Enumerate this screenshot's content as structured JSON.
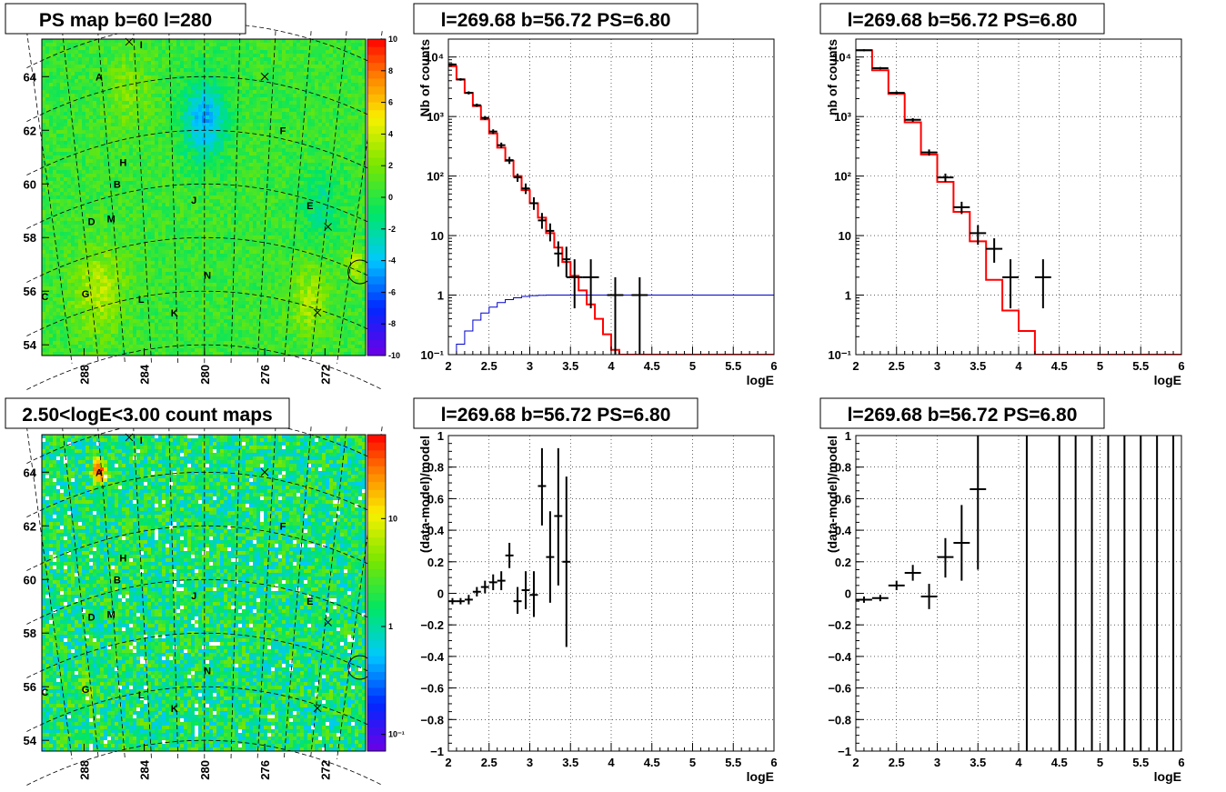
{
  "colors": {
    "model": "#ff0000",
    "efficiency": "#0000cc",
    "points": "#000000"
  },
  "maps": [
    {
      "title": "PS map b=60 l=280",
      "type": "heatmap",
      "colorscale": "linear",
      "zlim": [
        -10,
        10
      ],
      "palette_ticks": [
        "10",
        "8",
        "6",
        "4",
        "2",
        "0",
        "-2",
        "-4",
        "-6",
        "-8",
        "-10"
      ],
      "x_ticks": [
        "288",
        "284",
        "280",
        "276",
        "272"
      ],
      "y_ticks": [
        "64",
        "62",
        "60",
        "58",
        "56",
        "54"
      ],
      "sources": [
        {
          "label": "A",
          "l": 287.0,
          "b": 64.0
        },
        {
          "label": "I",
          "l": 284.2,
          "b": 65.2
        },
        {
          "label": "F",
          "l": 274.8,
          "b": 62.0
        },
        {
          "label": "H",
          "l": 285.4,
          "b": 60.8
        },
        {
          "label": "B",
          "l": 285.8,
          "b": 60.0
        },
        {
          "label": "J",
          "l": 280.7,
          "b": 59.4
        },
        {
          "label": "E",
          "l": 273.0,
          "b": 59.2
        },
        {
          "label": "D",
          "l": 287.5,
          "b": 58.6
        },
        {
          "label": "M",
          "l": 286.2,
          "b": 58.7
        },
        {
          "label": "N",
          "l": 279.8,
          "b": 56.6
        },
        {
          "label": "C",
          "l": 290.6,
          "b": 55.8
        },
        {
          "label": "G",
          "l": 287.9,
          "b": 55.9
        },
        {
          "label": "L",
          "l": 284.2,
          "b": 55.7
        },
        {
          "label": "K",
          "l": 282.0,
          "b": 55.2
        }
      ],
      "markers": [
        {
          "l": 276.0,
          "b": 64.0
        },
        {
          "l": 271.8,
          "b": 58.4
        },
        {
          "l": 272.5,
          "b": 55.2
        },
        {
          "l": 285.0,
          "b": 65.3
        }
      ],
      "circle": {
        "l": 269.68,
        "b": 56.72
      }
    },
    {
      "title": "2.50<logE<3.00 count maps",
      "type": "heatmap",
      "colorscale": "log",
      "zlim": [
        0.07,
        60
      ],
      "palette_ticks": [
        "10",
        "1",
        "10⁻¹"
      ],
      "palette_values": [
        10,
        1,
        0.1
      ],
      "x_ticks": [
        "288",
        "284",
        "280",
        "276",
        "272"
      ],
      "y_ticks": [
        "64",
        "62",
        "60",
        "58",
        "56",
        "54"
      ],
      "sources": [
        {
          "label": "A",
          "l": 287.0,
          "b": 64.0
        },
        {
          "label": "I",
          "l": 284.2,
          "b": 65.2
        },
        {
          "label": "F",
          "l": 274.8,
          "b": 62.0
        },
        {
          "label": "H",
          "l": 285.4,
          "b": 60.8
        },
        {
          "label": "B",
          "l": 285.8,
          "b": 60.0
        },
        {
          "label": "J",
          "l": 280.7,
          "b": 59.4
        },
        {
          "label": "E",
          "l": 273.0,
          "b": 59.2
        },
        {
          "label": "D",
          "l": 287.5,
          "b": 58.6
        },
        {
          "label": "M",
          "l": 286.2,
          "b": 58.7
        },
        {
          "label": "N",
          "l": 279.8,
          "b": 56.6
        },
        {
          "label": "C",
          "l": 290.6,
          "b": 55.8
        },
        {
          "label": "G",
          "l": 287.9,
          "b": 55.9
        },
        {
          "label": "L",
          "l": 284.2,
          "b": 55.7
        },
        {
          "label": "K",
          "l": 282.0,
          "b": 55.2
        }
      ],
      "markers": [
        {
          "l": 276.0,
          "b": 64.0
        },
        {
          "l": 271.8,
          "b": 58.4
        },
        {
          "l": 272.5,
          "b": 55.2
        },
        {
          "l": 285.0,
          "b": 65.3
        }
      ],
      "circle": {
        "l": 269.68,
        "b": 56.72
      }
    }
  ],
  "chart_data": [
    {
      "type": "line",
      "title": "l=269.68 b=56.72 PS=6.80",
      "xlabel": "logE",
      "ylabel": "Nb of counts",
      "xlim": [
        2,
        6
      ],
      "ylim": [
        0.1,
        20000
      ],
      "yscale": "log",
      "grid": true,
      "x_ticks": [
        "2",
        "2.5",
        "3",
        "3.5",
        "4",
        "4.5",
        "5",
        "5.5",
        "6"
      ],
      "y_ticks": [
        "10⁻¹",
        "1",
        "10",
        "10²",
        "10³",
        "10⁴"
      ],
      "y_tick_values": [
        0.1,
        1,
        10,
        100,
        1000,
        10000
      ],
      "series": [
        {
          "role": "model",
          "style": "step",
          "bins": [
            2.0,
            2.1,
            2.2,
            2.3,
            2.4,
            2.5,
            2.6,
            2.7,
            2.8,
            2.9,
            3.0,
            3.1,
            3.2,
            3.3,
            3.4,
            3.5,
            3.6,
            3.7,
            3.8,
            3.9,
            4.0,
            4.1,
            4.2,
            6.0
          ],
          "values": [
            7000,
            4200,
            2500,
            1500,
            900,
            520,
            300,
            180,
            100,
            58,
            35,
            20,
            11,
            6.3,
            3.6,
            2.1,
            1.2,
            0.7,
            0.4,
            0.22,
            0.12,
            0.1,
            0.1
          ]
        },
        {
          "role": "efficiency",
          "style": "step",
          "bins": [
            2.0,
            2.1,
            2.2,
            2.3,
            2.4,
            2.5,
            2.6,
            2.7,
            2.8,
            2.9,
            3.0,
            3.1,
            3.2,
            6.0
          ],
          "values": [
            0.1,
            0.15,
            0.25,
            0.38,
            0.5,
            0.63,
            0.75,
            0.84,
            0.9,
            0.95,
            0.98,
            0.99,
            1.0
          ]
        },
        {
          "role": "data",
          "style": "points",
          "points": [
            {
              "x": 2.05,
              "y": 7500,
              "lo": 7200,
              "hi": 7800,
              "xe": 0.05
            },
            {
              "x": 2.15,
              "y": 4200,
              "lo": 4000,
              "hi": 4400,
              "xe": 0.05
            },
            {
              "x": 2.25,
              "y": 2500,
              "lo": 2350,
              "hi": 2650,
              "xe": 0.05
            },
            {
              "x": 2.35,
              "y": 1550,
              "lo": 1450,
              "hi": 1650,
              "xe": 0.05
            },
            {
              "x": 2.45,
              "y": 950,
              "lo": 880,
              "hi": 1020,
              "xe": 0.05
            },
            {
              "x": 2.55,
              "y": 560,
              "lo": 510,
              "hi": 610,
              "xe": 0.05
            },
            {
              "x": 2.65,
              "y": 330,
              "lo": 295,
              "hi": 365,
              "xe": 0.05
            },
            {
              "x": 2.75,
              "y": 185,
              "lo": 160,
              "hi": 210,
              "xe": 0.05
            },
            {
              "x": 2.85,
              "y": 95,
              "lo": 80,
              "hi": 110,
              "xe": 0.05
            },
            {
              "x": 2.95,
              "y": 62,
              "lo": 50,
              "hi": 75,
              "xe": 0.05
            },
            {
              "x": 3.05,
              "y": 35,
              "lo": 27,
              "hi": 44,
              "xe": 0.05
            },
            {
              "x": 3.15,
              "y": 18,
              "lo": 13,
              "hi": 24,
              "xe": 0.05
            },
            {
              "x": 3.25,
              "y": 12,
              "lo": 8,
              "hi": 16,
              "xe": 0.05
            },
            {
              "x": 3.35,
              "y": 5,
              "lo": 3,
              "hi": 8,
              "xe": 0.05
            },
            {
              "x": 3.45,
              "y": 4,
              "lo": 2,
              "hi": 6.5,
              "xe": 0.05
            },
            {
              "x": 3.55,
              "y": 2,
              "lo": 0.6,
              "hi": 4,
              "xe": 0.1
            },
            {
              "x": 3.75,
              "y": 2,
              "lo": 0.6,
              "hi": 4,
              "xe": 0.1
            },
            {
              "x": 4.05,
              "y": 1,
              "lo": 0.1,
              "hi": 2,
              "xe": 0.1
            },
            {
              "x": 4.35,
              "y": 1,
              "lo": 0.1,
              "hi": 2,
              "xe": 0.1
            }
          ]
        }
      ]
    },
    {
      "type": "line",
      "title": "l=269.68 b=56.72 PS=6.80",
      "xlabel": "logE",
      "ylabel": "nb of counts",
      "xlim": [
        2,
        6
      ],
      "ylim": [
        0.1,
        20000
      ],
      "yscale": "log",
      "grid": true,
      "x_ticks": [
        "2",
        "2.5",
        "3",
        "3.5",
        "4",
        "4.5",
        "5",
        "5.5",
        "6"
      ],
      "y_ticks": [
        "10⁻¹",
        "1",
        "10",
        "10²",
        "10³",
        "10⁴"
      ],
      "y_tick_values": [
        0.1,
        1,
        10,
        100,
        1000,
        10000
      ],
      "series": [
        {
          "role": "model",
          "style": "step",
          "bins": [
            2.0,
            2.2,
            2.4,
            2.6,
            2.8,
            3.0,
            3.2,
            3.4,
            3.6,
            3.8,
            4.0,
            4.2,
            6.0
          ],
          "values": [
            13000,
            6000,
            2400,
            800,
            230,
            80,
            25,
            8,
            1.8,
            0.55,
            0.25,
            0.1
          ]
        },
        {
          "role": "data",
          "style": "points",
          "points": [
            {
              "x": 2.1,
              "y": 13000,
              "lo": 12500,
              "hi": 13500,
              "xe": 0.1
            },
            {
              "x": 2.3,
              "y": 6500,
              "lo": 6200,
              "hi": 6800,
              "xe": 0.1
            },
            {
              "x": 2.5,
              "y": 2500,
              "lo": 2350,
              "hi": 2650,
              "xe": 0.1
            },
            {
              "x": 2.7,
              "y": 880,
              "lo": 820,
              "hi": 940,
              "xe": 0.1
            },
            {
              "x": 2.9,
              "y": 250,
              "lo": 220,
              "hi": 280,
              "xe": 0.1
            },
            {
              "x": 3.1,
              "y": 95,
              "lo": 80,
              "hi": 110,
              "xe": 0.1
            },
            {
              "x": 3.3,
              "y": 30,
              "lo": 23,
              "hi": 37,
              "xe": 0.1
            },
            {
              "x": 3.5,
              "y": 11,
              "lo": 7,
              "hi": 15,
              "xe": 0.1
            },
            {
              "x": 3.7,
              "y": 6,
              "lo": 3.5,
              "hi": 9,
              "xe": 0.1
            },
            {
              "x": 3.9,
              "y": 2,
              "lo": 0.6,
              "hi": 4,
              "xe": 0.1
            },
            {
              "x": 4.3,
              "y": 2,
              "lo": 0.6,
              "hi": 4,
              "xe": 0.1
            }
          ]
        }
      ]
    },
    {
      "type": "scatter",
      "title": "l=269.68 b=56.72 PS=6.80",
      "xlabel": "logE",
      "ylabel": "(data-model)/model",
      "xlim": [
        2,
        6
      ],
      "ylim": [
        -1,
        1
      ],
      "grid": true,
      "x_ticks": [
        "2",
        "2.5",
        "3",
        "3.5",
        "4",
        "4.5",
        "5",
        "5.5",
        "6"
      ],
      "y_ticks": [
        "1",
        "0.8",
        "0.6",
        "0.4",
        "0.2",
        "0",
        "−0.2",
        "−0.4",
        "−0.6",
        "−0.8",
        "−1"
      ],
      "series": [
        {
          "role": "data",
          "style": "points",
          "points": [
            {
              "x": 2.05,
              "y": -0.05,
              "lo": -0.07,
              "hi": -0.03,
              "xe": 0.05
            },
            {
              "x": 2.15,
              "y": -0.05,
              "lo": -0.07,
              "hi": -0.03,
              "xe": 0.05
            },
            {
              "x": 2.25,
              "y": -0.04,
              "lo": -0.07,
              "hi": -0.01,
              "xe": 0.05
            },
            {
              "x": 2.35,
              "y": 0.01,
              "lo": -0.02,
              "hi": 0.04,
              "xe": 0.05
            },
            {
              "x": 2.45,
              "y": 0.04,
              "lo": 0.0,
              "hi": 0.08,
              "xe": 0.05
            },
            {
              "x": 2.55,
              "y": 0.07,
              "lo": 0.02,
              "hi": 0.12,
              "xe": 0.05
            },
            {
              "x": 2.65,
              "y": 0.08,
              "lo": 0.02,
              "hi": 0.14,
              "xe": 0.05
            },
            {
              "x": 2.75,
              "y": 0.24,
              "lo": 0.16,
              "hi": 0.32,
              "xe": 0.05
            },
            {
              "x": 2.85,
              "y": -0.05,
              "lo": -0.13,
              "hi": 0.04,
              "xe": 0.05
            },
            {
              "x": 2.95,
              "y": 0.02,
              "lo": -0.1,
              "hi": 0.14,
              "xe": 0.05
            },
            {
              "x": 3.05,
              "y": -0.01,
              "lo": -0.15,
              "hi": 0.14,
              "xe": 0.05
            },
            {
              "x": 3.15,
              "y": 0.68,
              "lo": 0.43,
              "hi": 0.92,
              "xe": 0.05
            },
            {
              "x": 3.25,
              "y": 0.23,
              "lo": -0.06,
              "hi": 0.52,
              "xe": 0.05
            },
            {
              "x": 3.35,
              "y": 0.49,
              "lo": 0.05,
              "hi": 0.92,
              "xe": 0.05
            },
            {
              "x": 3.45,
              "y": 0.2,
              "lo": -0.34,
              "hi": 0.74,
              "xe": 0.05
            }
          ]
        }
      ]
    },
    {
      "type": "scatter",
      "title": "l=269.68 b=56.72 PS=6.80",
      "xlabel": "logE",
      "ylabel": "(data-model)/model",
      "xlim": [
        2,
        6
      ],
      "ylim": [
        -1,
        1
      ],
      "grid": true,
      "x_ticks": [
        "2",
        "2.5",
        "3",
        "3.5",
        "4",
        "4.5",
        "5",
        "5.5",
        "6"
      ],
      "y_ticks": [
        "1",
        "0.8",
        "0.6",
        "0.4",
        "0.2",
        "0",
        "−0.2",
        "−0.4",
        "−0.6",
        "−0.8",
        "−1"
      ],
      "series": [
        {
          "role": "data",
          "style": "points",
          "points": [
            {
              "x": 2.1,
              "y": -0.04,
              "lo": -0.06,
              "hi": -0.02,
              "xe": 0.1
            },
            {
              "x": 2.3,
              "y": -0.03,
              "lo": -0.05,
              "hi": -0.01,
              "xe": 0.1
            },
            {
              "x": 2.5,
              "y": 0.05,
              "lo": 0.02,
              "hi": 0.08,
              "xe": 0.1
            },
            {
              "x": 2.7,
              "y": 0.13,
              "lo": 0.08,
              "hi": 0.18,
              "xe": 0.1
            },
            {
              "x": 2.9,
              "y": -0.02,
              "lo": -0.1,
              "hi": 0.06,
              "xe": 0.1
            },
            {
              "x": 3.1,
              "y": 0.23,
              "lo": 0.1,
              "hi": 0.35,
              "xe": 0.1
            },
            {
              "x": 3.3,
              "y": 0.32,
              "lo": 0.08,
              "hi": 0.56,
              "xe": 0.1
            },
            {
              "x": 3.5,
              "y": 0.66,
              "lo": 0.15,
              "hi": 1.0,
              "xe": 0.1
            },
            {
              "x": 4.1,
              "y": 1.0,
              "lo": -1.0,
              "hi": 1.0,
              "xe": 0
            },
            {
              "x": 4.5,
              "y": 1.0,
              "lo": -1.0,
              "hi": 1.0,
              "xe": 0
            },
            {
              "x": 4.7,
              "y": 1.0,
              "lo": -1.0,
              "hi": 1.0,
              "xe": 0
            },
            {
              "x": 4.9,
              "y": 1.0,
              "lo": -1.0,
              "hi": 1.0,
              "xe": 0
            },
            {
              "x": 5.1,
              "y": 1.0,
              "lo": -1.0,
              "hi": 1.0,
              "xe": 0
            },
            {
              "x": 5.3,
              "y": 1.0,
              "lo": -1.0,
              "hi": 1.0,
              "xe": 0
            },
            {
              "x": 5.5,
              "y": 1.0,
              "lo": -1.0,
              "hi": 1.0,
              "xe": 0
            },
            {
              "x": 5.7,
              "y": 1.0,
              "lo": -1.0,
              "hi": 1.0,
              "xe": 0
            },
            {
              "x": 5.9,
              "y": 1.0,
              "lo": -1.0,
              "hi": 1.0,
              "xe": 0
            }
          ]
        }
      ]
    }
  ]
}
